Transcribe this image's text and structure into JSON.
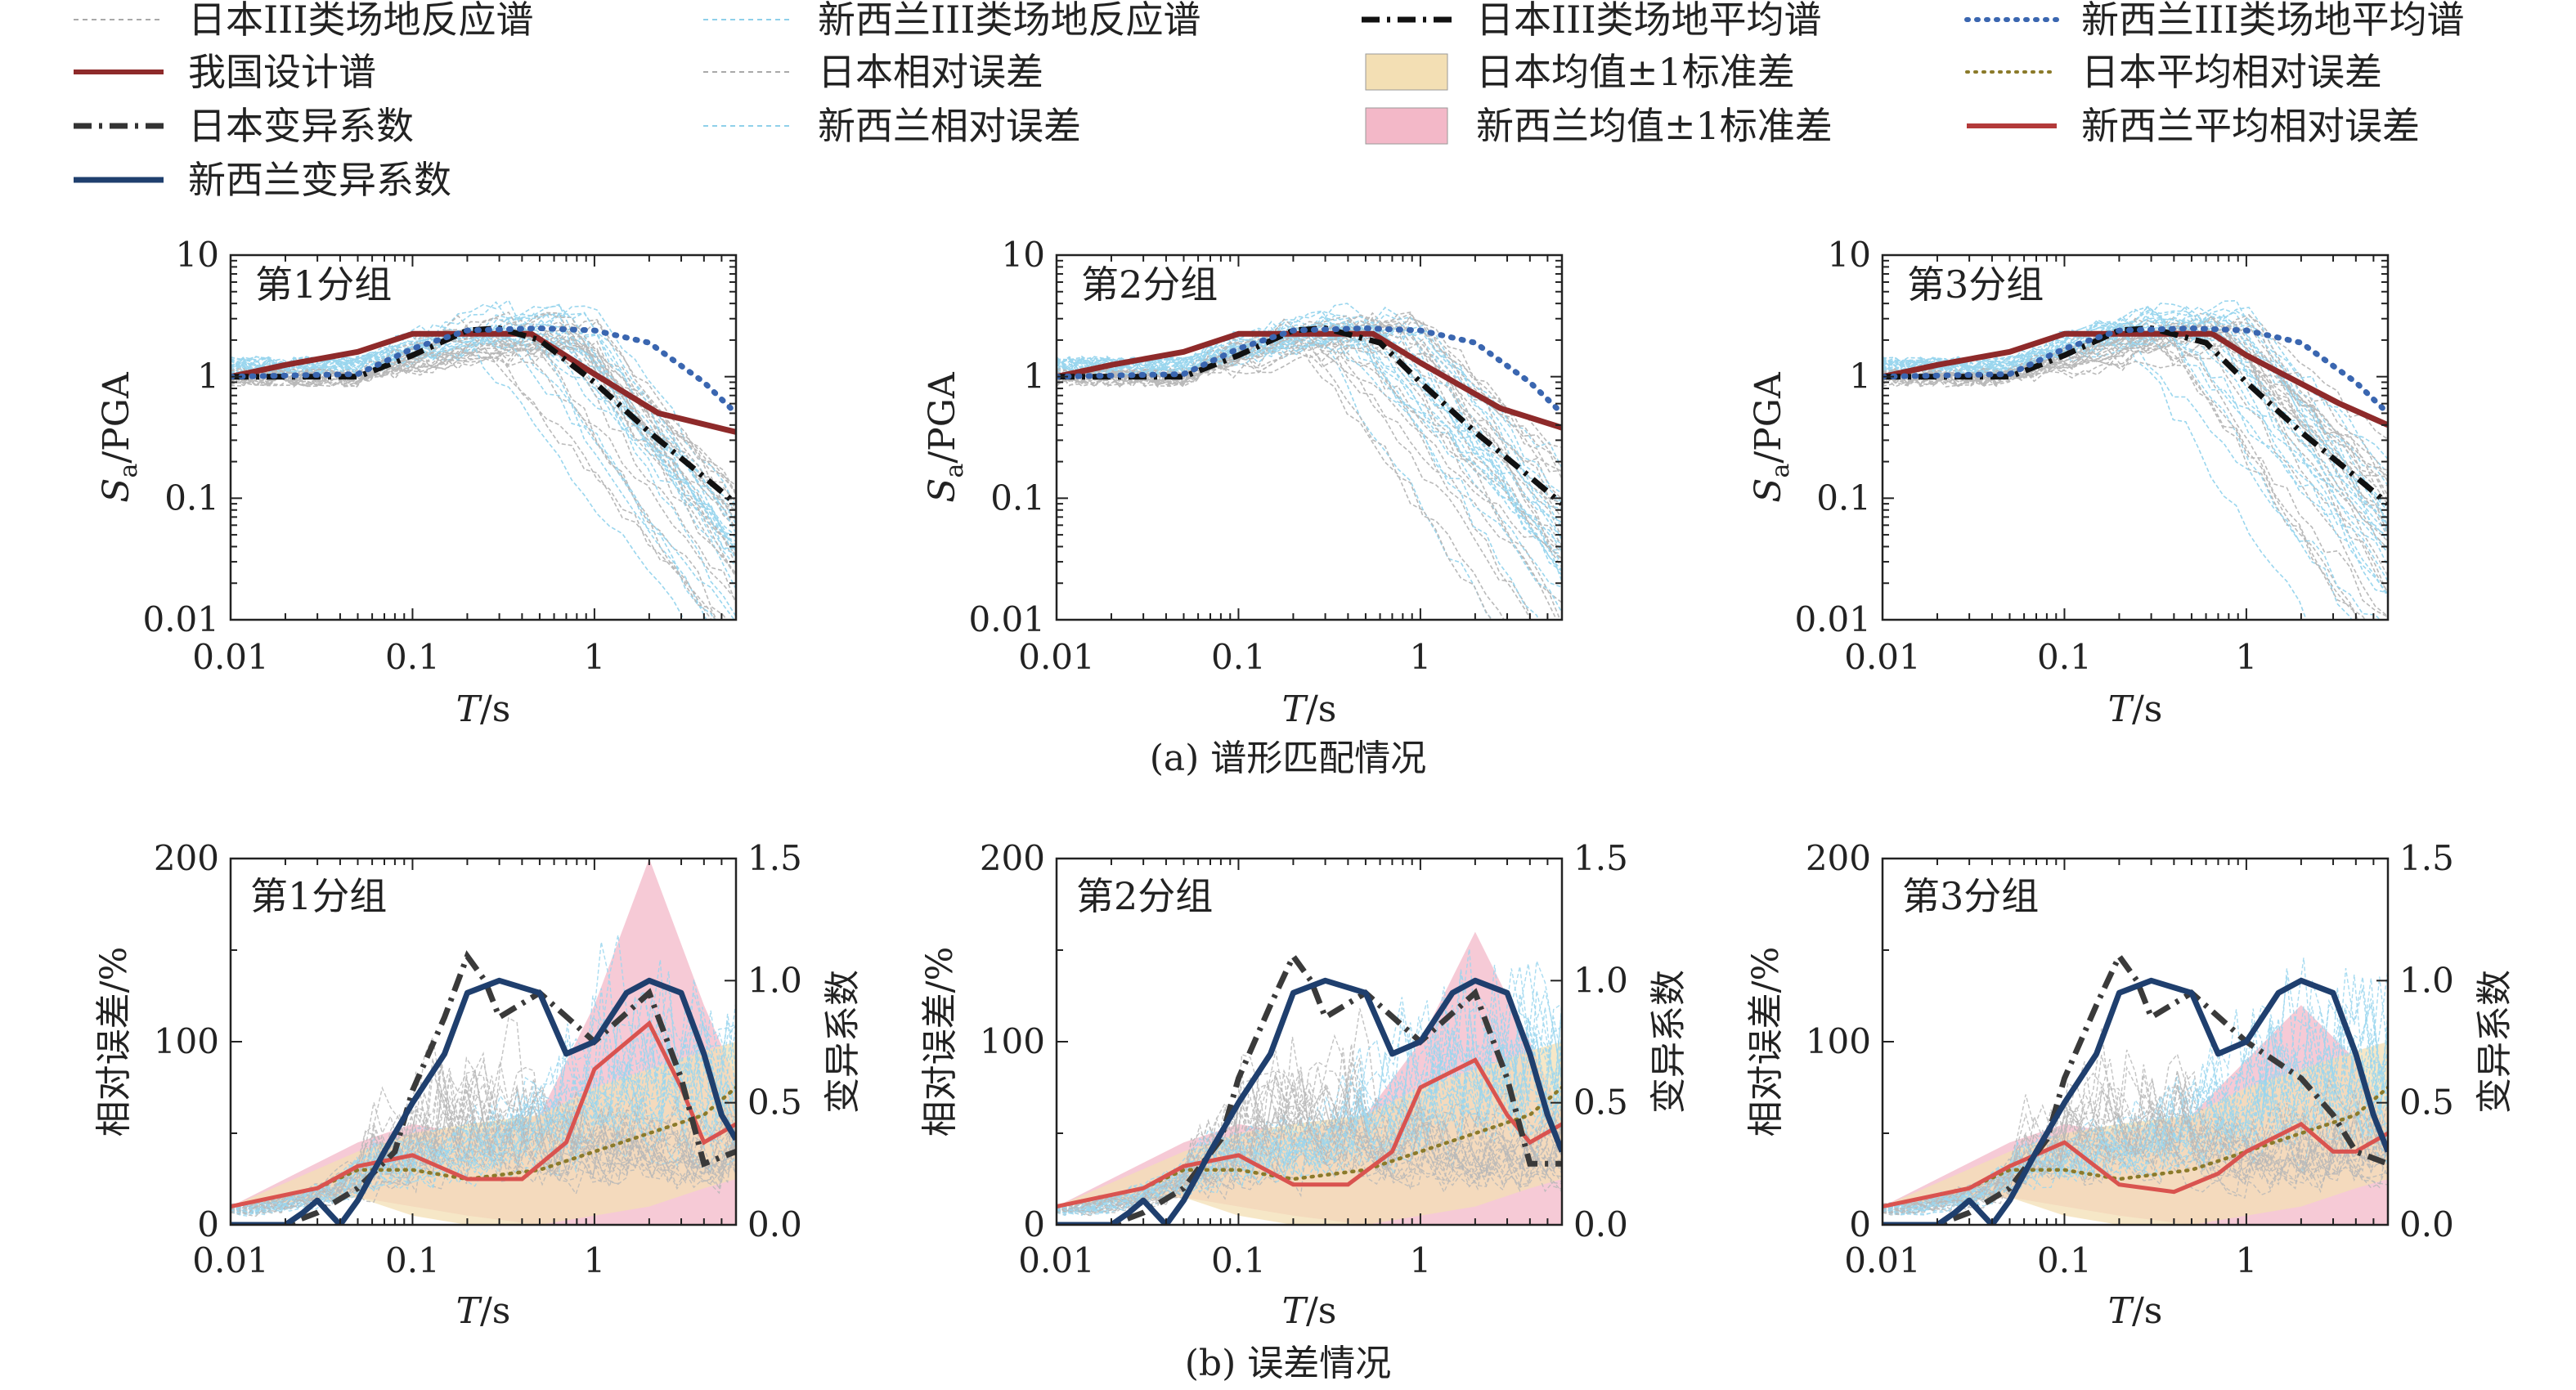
{
  "legend": [
    {
      "key": "jp_spectra",
      "label": "日本III类场地反应谱",
      "style": "thin-dash",
      "color": "#a9a9a9"
    },
    {
      "key": "nz_spectra",
      "label": "新西兰III类场地反应谱",
      "style": "thin-dash",
      "color": "#8fd0ea"
    },
    {
      "key": "jp_mean",
      "label": "日本III类场地平均谱",
      "style": "dashdot",
      "color": "#111111"
    },
    {
      "key": "nz_mean",
      "label": "新西兰III类场地平均谱",
      "style": "dotted",
      "color": "#3a66b0"
    },
    {
      "key": "cn_design",
      "label": "我国设计谱",
      "style": "solid",
      "color": "#8e2a2a"
    },
    {
      "key": "jp_rel_err",
      "label": "日本相对误差",
      "style": "thin-dash",
      "color": "#a9a9a9"
    },
    {
      "key": "jp_band",
      "label": "日本均值±1标准差",
      "style": "box",
      "color": "#f3dfb4"
    },
    {
      "key": "jp_mean_rel_err",
      "label": "日本平均相对误差",
      "style": "dotted-small",
      "color": "#8b7a2a"
    },
    {
      "key": "jp_cov",
      "label": "日本变异系数",
      "style": "dashdot-thick",
      "color": "#333333"
    },
    {
      "key": "nz_rel_err",
      "label": "新西兰相对误差",
      "style": "thin-dash",
      "color": "#8fd0ea"
    },
    {
      "key": "nz_band",
      "label": "新西兰均值±1标准差",
      "style": "box",
      "color": "#f3b8c8"
    },
    {
      "key": "nz_mean_rel_err",
      "label": "新西兰平均相对误差",
      "style": "solid",
      "color": "#b33a3a"
    },
    {
      "key": "nz_cov",
      "label": "新西兰变异系数",
      "style": "solid-thick",
      "color": "#1f3f6e"
    }
  ],
  "panel_labels": [
    "第1分组",
    "第2分组",
    "第3分组"
  ],
  "captions": {
    "a": "(a) 谱形匹配情况",
    "b": "(b) 误差情况"
  },
  "axes": {
    "x_title_italic": "T",
    "x_title_rest": "/s",
    "top_y_title_italic": "S",
    "top_y_title_sub": "a",
    "top_y_title_rest": "/PGA",
    "bottom_y_left_title": "相对误差/%",
    "bottom_y_right_title": "变异系数",
    "x_ticks": [
      "0.01",
      "0.1",
      "1"
    ],
    "top_y_ticks": [
      "0.01",
      "0.1",
      "1",
      "10"
    ],
    "bottom_y_left_ticks": [
      "0",
      "100",
      "200"
    ],
    "bottom_y_right_ticks": [
      "0.0",
      "0.5",
      "1.0",
      "1.5"
    ]
  },
  "colors": {
    "jp_gray": "#b9b9b9",
    "nz_cyan": "#9ad6ee",
    "design_red": "#8e2a2a",
    "jp_mean_black": "#111111",
    "nz_mean_blue": "#3a66b0",
    "jp_band": "#f3dfb4",
    "nz_band": "#f3b8c8",
    "jp_avg_err": "#8b7a2a",
    "nz_avg_err": "#d9534f",
    "jp_cov": "#3a3a3a",
    "nz_cov": "#1f3f6e"
  },
  "chart_data": [
    {
      "type": "line",
      "group": "第1分组",
      "panel": "a",
      "x_scale": "log",
      "y_scale": "log",
      "xlim": [
        0.01,
        6
      ],
      "ylim": [
        0.01,
        10
      ],
      "xlabel": "T/s",
      "ylabel": "Sa/PGA",
      "series": [
        {
          "name": "我国设计谱",
          "x": [
            0.01,
            0.02,
            0.05,
            0.1,
            0.45,
            1.0,
            2.25,
            6.0
          ],
          "y": [
            1.0,
            1.25,
            1.6,
            2.25,
            2.25,
            1.05,
            0.5,
            0.35
          ]
        },
        {
          "name": "日本III类场地平均谱",
          "x": [
            0.01,
            0.05,
            0.1,
            0.2,
            0.3,
            0.5,
            1.0,
            2.0,
            4.0,
            6.0
          ],
          "y": [
            1.0,
            1.0,
            1.5,
            2.4,
            2.5,
            2.0,
            0.9,
            0.35,
            0.15,
            0.09
          ]
        },
        {
          "name": "新西兰III类场地平均谱",
          "x": [
            0.01,
            0.05,
            0.1,
            0.2,
            0.5,
            1.0,
            2.0,
            4.0,
            6.0
          ],
          "y": [
            1.0,
            1.05,
            1.7,
            2.4,
            2.5,
            2.4,
            1.9,
            0.9,
            0.5
          ]
        }
      ]
    },
    {
      "type": "line",
      "group": "第2分组",
      "panel": "a",
      "x_scale": "log",
      "y_scale": "log",
      "xlim": [
        0.01,
        6
      ],
      "ylim": [
        0.01,
        10
      ],
      "xlabel": "T/s",
      "ylabel": "Sa/PGA",
      "series": [
        {
          "name": "我国设计谱",
          "x": [
            0.01,
            0.02,
            0.05,
            0.1,
            0.55,
            1.0,
            2.75,
            6.0
          ],
          "y": [
            1.0,
            1.25,
            1.6,
            2.25,
            2.25,
            1.3,
            0.55,
            0.38
          ]
        },
        {
          "name": "日本III类场地平均谱",
          "x": [
            0.01,
            0.05,
            0.1,
            0.2,
            0.3,
            0.6,
            1.0,
            2.0,
            4.0,
            6.0
          ],
          "y": [
            1.0,
            1.0,
            1.5,
            2.4,
            2.5,
            1.9,
            0.9,
            0.35,
            0.15,
            0.09
          ]
        },
        {
          "name": "新西兰III类场地平均谱",
          "x": [
            0.01,
            0.05,
            0.1,
            0.2,
            0.5,
            1.0,
            2.0,
            4.0,
            6.0
          ],
          "y": [
            1.0,
            1.05,
            1.7,
            2.4,
            2.5,
            2.4,
            1.9,
            0.9,
            0.5
          ]
        }
      ]
    },
    {
      "type": "line",
      "group": "第3分组",
      "panel": "a",
      "x_scale": "log",
      "y_scale": "log",
      "xlim": [
        0.01,
        6
      ],
      "ylim": [
        0.01,
        10
      ],
      "xlabel": "T/s",
      "ylabel": "Sa/PGA",
      "series": [
        {
          "name": "我国设计谱",
          "x": [
            0.01,
            0.02,
            0.05,
            0.1,
            0.65,
            1.0,
            3.25,
            6.0
          ],
          "y": [
            1.0,
            1.25,
            1.6,
            2.25,
            2.25,
            1.5,
            0.6,
            0.4
          ]
        },
        {
          "name": "日本III类场地平均谱",
          "x": [
            0.01,
            0.05,
            0.1,
            0.2,
            0.3,
            0.6,
            1.0,
            2.0,
            4.0,
            6.0
          ],
          "y": [
            1.0,
            1.0,
            1.5,
            2.4,
            2.5,
            1.9,
            0.9,
            0.35,
            0.15,
            0.09
          ]
        },
        {
          "name": "新西兰III类场地平均谱",
          "x": [
            0.01,
            0.05,
            0.1,
            0.2,
            0.5,
            1.0,
            2.0,
            4.0,
            6.0
          ],
          "y": [
            1.0,
            1.05,
            1.7,
            2.4,
            2.5,
            2.4,
            1.9,
            0.9,
            0.5
          ]
        }
      ]
    },
    {
      "type": "line",
      "group": "第1分组",
      "panel": "b",
      "x_scale": "log",
      "xlim": [
        0.01,
        6
      ],
      "ylim_left": [
        0,
        200
      ],
      "ylim_right": [
        0,
        1.5
      ],
      "xlabel": "T/s",
      "ylabel_left": "相对误差/%",
      "ylabel_right": "变异系数",
      "series": [
        {
          "name": "日本均值±1标准差",
          "axis": "left",
          "kind": "band",
          "x": [
            0.01,
            0.05,
            0.1,
            0.2,
            0.5,
            1.0,
            2.0,
            4.0,
            6.0
          ],
          "lower": [
            10,
            15,
            5,
            0,
            0,
            5,
            10,
            20,
            25
          ],
          "upper": [
            10,
            40,
            50,
            55,
            60,
            75,
            85,
            95,
            100
          ]
        },
        {
          "name": "新西兰均值±1标准差",
          "axis": "left",
          "kind": "band",
          "x": [
            0.01,
            0.05,
            0.1,
            0.2,
            0.5,
            1.0,
            2.0,
            4.0,
            6.0
          ],
          "lower": [
            10,
            15,
            10,
            5,
            0,
            0,
            0,
            0,
            0
          ],
          "upper": [
            10,
            45,
            55,
            50,
            60,
            120,
            200,
            120,
            80
          ]
        },
        {
          "name": "日本平均相对误差",
          "axis": "left",
          "x": [
            0.01,
            0.03,
            0.05,
            0.1,
            0.2,
            0.5,
            1.0,
            2.0,
            4.0,
            6.0
          ],
          "y": [
            10,
            20,
            30,
            30,
            25,
            30,
            40,
            50,
            60,
            75
          ]
        },
        {
          "name": "新西兰平均相对误差",
          "axis": "left",
          "x": [
            0.01,
            0.03,
            0.05,
            0.1,
            0.2,
            0.4,
            0.7,
            1.0,
            2.0,
            3.0,
            4.0,
            6.0
          ],
          "y": [
            10,
            20,
            32,
            38,
            25,
            25,
            45,
            85,
            110,
            75,
            45,
            55
          ]
        },
        {
          "name": "日本变异系数",
          "axis": "right",
          "x": [
            0.01,
            0.02,
            0.03,
            0.05,
            0.08,
            0.1,
            0.15,
            0.2,
            0.25,
            0.3,
            0.5,
            1.0,
            2.0,
            3.0,
            4.0,
            6.0
          ],
          "y": [
            0,
            0,
            0.05,
            0.15,
            0.3,
            0.55,
            0.85,
            1.1,
            1.0,
            0.85,
            0.95,
            0.75,
            0.95,
            0.6,
            0.25,
            0.3
          ]
        },
        {
          "name": "新西兰变异系数",
          "axis": "right",
          "x": [
            0.01,
            0.02,
            0.025,
            0.03,
            0.04,
            0.05,
            0.07,
            0.1,
            0.15,
            0.2,
            0.3,
            0.5,
            0.7,
            1.0,
            1.5,
            2.0,
            3.0,
            4.0,
            5.0,
            6.0
          ],
          "y": [
            0,
            0,
            0.05,
            0.1,
            0.0,
            0.1,
            0.3,
            0.5,
            0.7,
            0.95,
            1.0,
            0.95,
            0.7,
            0.75,
            0.95,
            1.0,
            0.95,
            0.7,
            0.45,
            0.35
          ]
        }
      ]
    },
    {
      "type": "line",
      "group": "第2分组",
      "panel": "b",
      "x_scale": "log",
      "xlim": [
        0.01,
        6
      ],
      "ylim_left": [
        0,
        200
      ],
      "ylim_right": [
        0,
        1.5
      ],
      "xlabel": "T/s",
      "ylabel_left": "相对误差/%",
      "ylabel_right": "变异系数",
      "series": [
        {
          "name": "日本均值±1标准差",
          "axis": "left",
          "kind": "band",
          "x": [
            0.01,
            0.05,
            0.1,
            0.2,
            0.5,
            1.0,
            2.0,
            4.0,
            6.0
          ],
          "lower": [
            10,
            15,
            5,
            0,
            0,
            5,
            10,
            20,
            25
          ],
          "upper": [
            10,
            40,
            50,
            55,
            60,
            75,
            85,
            95,
            100
          ]
        },
        {
          "name": "新西兰均值±1标准差",
          "axis": "left",
          "kind": "band",
          "x": [
            0.01,
            0.05,
            0.1,
            0.2,
            0.5,
            1.0,
            2.0,
            4.0,
            6.0
          ],
          "lower": [
            10,
            15,
            10,
            5,
            0,
            0,
            0,
            0,
            0
          ],
          "upper": [
            10,
            45,
            55,
            50,
            60,
            100,
            160,
            100,
            60
          ]
        },
        {
          "name": "日本平均相对误差",
          "axis": "left",
          "x": [
            0.01,
            0.03,
            0.05,
            0.1,
            0.2,
            0.5,
            1.0,
            2.0,
            4.0,
            6.0
          ],
          "y": [
            10,
            20,
            30,
            30,
            25,
            30,
            40,
            50,
            60,
            75
          ]
        },
        {
          "name": "新西兰平均相对误差",
          "axis": "left",
          "x": [
            0.01,
            0.03,
            0.05,
            0.1,
            0.2,
            0.4,
            0.7,
            1.0,
            2.0,
            3.0,
            4.0,
            6.0
          ],
          "y": [
            10,
            20,
            32,
            38,
            22,
            22,
            40,
            75,
            90,
            60,
            45,
            55
          ]
        },
        {
          "name": "日本变异系数",
          "axis": "right",
          "x": [
            0.01,
            0.02,
            0.03,
            0.05,
            0.08,
            0.1,
            0.15,
            0.2,
            0.25,
            0.3,
            0.5,
            1.0,
            2.0,
            3.0,
            4.0,
            6.0
          ],
          "y": [
            0,
            0,
            0.05,
            0.15,
            0.35,
            0.6,
            0.9,
            1.1,
            1.0,
            0.85,
            0.95,
            0.75,
            0.95,
            0.6,
            0.25,
            0.25
          ]
        },
        {
          "name": "新西兰变异系数",
          "axis": "right",
          "x": [
            0.01,
            0.02,
            0.025,
            0.03,
            0.04,
            0.05,
            0.07,
            0.1,
            0.15,
            0.2,
            0.3,
            0.5,
            0.7,
            1.0,
            1.5,
            2.0,
            3.0,
            4.0,
            5.0,
            6.0
          ],
          "y": [
            0,
            0,
            0.05,
            0.1,
            0.0,
            0.1,
            0.3,
            0.5,
            0.7,
            0.95,
            1.0,
            0.95,
            0.7,
            0.75,
            0.95,
            1.0,
            0.95,
            0.7,
            0.45,
            0.3
          ]
        }
      ]
    },
    {
      "type": "line",
      "group": "第3分组",
      "panel": "b",
      "x_scale": "log",
      "xlim": [
        0.01,
        6
      ],
      "ylim_left": [
        0,
        200
      ],
      "ylim_right": [
        0,
        1.5
      ],
      "xlabel": "T/s",
      "ylabel_left": "相对误差/%",
      "ylabel_right": "变异系数",
      "series": [
        {
          "name": "日本均值±1标准差",
          "axis": "left",
          "kind": "band",
          "x": [
            0.01,
            0.05,
            0.1,
            0.2,
            0.5,
            1.0,
            2.0,
            4.0,
            6.0
          ],
          "lower": [
            10,
            15,
            5,
            0,
            0,
            5,
            10,
            20,
            25
          ],
          "upper": [
            10,
            40,
            50,
            55,
            60,
            75,
            85,
            95,
            100
          ]
        },
        {
          "name": "新西兰均值±1标准差",
          "axis": "left",
          "kind": "band",
          "x": [
            0.01,
            0.05,
            0.1,
            0.2,
            0.5,
            1.0,
            2.0,
            4.0,
            6.0
          ],
          "lower": [
            10,
            15,
            10,
            5,
            0,
            0,
            0,
            0,
            0
          ],
          "upper": [
            10,
            45,
            55,
            50,
            60,
            90,
            120,
            90,
            60
          ]
        },
        {
          "name": "日本平均相对误差",
          "axis": "left",
          "x": [
            0.01,
            0.03,
            0.05,
            0.1,
            0.2,
            0.5,
            1.0,
            2.0,
            4.0,
            6.0
          ],
          "y": [
            10,
            20,
            30,
            30,
            25,
            30,
            40,
            50,
            60,
            75
          ]
        },
        {
          "name": "新西兰平均相对误差",
          "axis": "left",
          "x": [
            0.01,
            0.03,
            0.05,
            0.1,
            0.2,
            0.4,
            0.7,
            1.0,
            2.0,
            3.0,
            4.0,
            6.0
          ],
          "y": [
            10,
            20,
            32,
            45,
            22,
            18,
            28,
            40,
            55,
            40,
            40,
            50
          ]
        },
        {
          "name": "日本变异系数",
          "axis": "right",
          "x": [
            0.01,
            0.02,
            0.03,
            0.05,
            0.08,
            0.1,
            0.15,
            0.2,
            0.25,
            0.3,
            0.5,
            1.0,
            2.0,
            3.0,
            4.0,
            6.0
          ],
          "y": [
            0,
            0,
            0.05,
            0.15,
            0.35,
            0.6,
            0.9,
            1.1,
            1.0,
            0.85,
            0.95,
            0.75,
            0.6,
            0.45,
            0.3,
            0.25
          ]
        },
        {
          "name": "新西兰变异系数",
          "axis": "right",
          "x": [
            0.01,
            0.02,
            0.025,
            0.03,
            0.04,
            0.05,
            0.07,
            0.1,
            0.15,
            0.2,
            0.3,
            0.5,
            0.7,
            1.0,
            1.5,
            2.0,
            3.0,
            4.0,
            5.0,
            6.0
          ],
          "y": [
            0,
            0,
            0.05,
            0.1,
            0.0,
            0.1,
            0.3,
            0.5,
            0.7,
            0.95,
            1.0,
            0.95,
            0.7,
            0.75,
            0.95,
            1.0,
            0.95,
            0.7,
            0.45,
            0.3
          ]
        }
      ]
    }
  ]
}
